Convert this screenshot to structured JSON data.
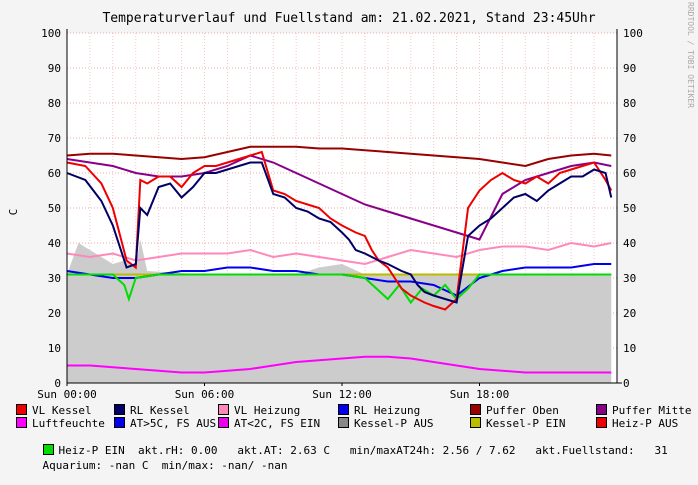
{
  "chart_data": {
    "type": "line",
    "title": "Temperaturverlauf und Fuellstand am: 21.02.2021, Stand 23:45Uhr",
    "ylabel": "C",
    "ylim": [
      0,
      100
    ],
    "yticks": [
      0,
      10,
      20,
      30,
      40,
      50,
      60,
      70,
      80,
      90,
      100
    ],
    "x_tick_labels": [
      "Sun 00:00",
      "Sun 06:00",
      "Sun 12:00",
      "Sun 18:00"
    ],
    "watermark": "RRDTOOL / TOBI OETIKER",
    "series": [
      {
        "name": "VL Kessel",
        "color": "#ee0000",
        "x": [
          0,
          0.8,
          1.5,
          2,
          2.6,
          3,
          3.2,
          3.5,
          4,
          4.5,
          5,
          5.5,
          6,
          6.5,
          7,
          7.5,
          8,
          8.5,
          9,
          9.5,
          10,
          10.5,
          11,
          11.5,
          12,
          12.3,
          12.6,
          13,
          13.3,
          13.6,
          14,
          14.3,
          14.6,
          15,
          15.3,
          15.6,
          16,
          16.5,
          17,
          17.5,
          18,
          18.5,
          19,
          19.5,
          20,
          20.5,
          21,
          21.5,
          22,
          22.5,
          23,
          23.5,
          23.75
        ],
        "y": [
          63,
          62,
          57,
          50,
          35,
          33,
          58,
          57,
          59,
          59,
          56,
          60,
          62,
          62,
          63,
          64,
          65,
          66,
          55,
          54,
          52,
          51,
          50,
          47,
          45,
          44,
          43,
          42,
          38,
          35,
          33,
          30,
          27,
          25,
          24,
          23,
          22,
          21,
          24,
          50,
          55,
          58,
          60,
          58,
          57,
          59,
          57,
          60,
          61,
          62,
          63,
          58,
          55
        ]
      },
      {
        "name": "RL Kessel",
        "color": "#000066",
        "x": [
          0,
          0.8,
          1.5,
          2,
          2.6,
          3,
          3.2,
          3.5,
          4,
          4.5,
          5,
          5.5,
          6,
          6.5,
          7,
          7.5,
          8,
          8.5,
          9,
          9.5,
          10,
          10.5,
          11,
          11.5,
          12,
          12.3,
          12.6,
          13,
          13.3,
          13.6,
          14,
          14.3,
          14.6,
          15,
          15.3,
          15.6,
          16,
          16.5,
          17,
          17.5,
          18,
          18.5,
          19,
          19.5,
          20,
          20.5,
          21,
          21.5,
          22,
          22.5,
          23,
          23.5,
          23.75
        ],
        "y": [
          60,
          58,
          52,
          45,
          33,
          34,
          50,
          48,
          56,
          57,
          53,
          56,
          60,
          60,
          61,
          62,
          63,
          63,
          54,
          53,
          50,
          49,
          47,
          46,
          43,
          41,
          38,
          37,
          36,
          35,
          34,
          33,
          32,
          31,
          28,
          26,
          25,
          24,
          23,
          42,
          45,
          47,
          50,
          53,
          54,
          52,
          55,
          57,
          59,
          59,
          61,
          60,
          53
        ]
      },
      {
        "name": "VL Heizung",
        "color": "#ff88bb",
        "x": [
          0,
          1,
          2,
          3,
          4,
          5,
          6,
          7,
          8,
          9,
          10,
          11,
          12,
          13,
          14,
          15,
          16,
          17,
          18,
          19,
          20,
          21,
          22,
          23,
          23.75
        ],
        "y": [
          37,
          36,
          37,
          35,
          36,
          37,
          37,
          37,
          38,
          36,
          37,
          36,
          35,
          34,
          36,
          38,
          37,
          36,
          38,
          39,
          39,
          38,
          40,
          39,
          40
        ]
      },
      {
        "name": "RL Heizung",
        "color": "#0000ee",
        "x": [
          0,
          1,
          2,
          3,
          4,
          5,
          6,
          7,
          8,
          9,
          10,
          11,
          12,
          13,
          14,
          15,
          16,
          17,
          18,
          19,
          20,
          21,
          22,
          23,
          23.75
        ],
        "y": [
          32,
          31,
          30,
          30,
          31,
          32,
          32,
          33,
          33,
          32,
          32,
          31,
          31,
          30,
          29,
          29,
          28,
          25,
          30,
          32,
          33,
          33,
          33,
          34,
          34
        ]
      },
      {
        "name": "Puffer Oben",
        "color": "#990000",
        "x": [
          0,
          1,
          2,
          3,
          4,
          5,
          6,
          7,
          8,
          9,
          10,
          11,
          12,
          13,
          14,
          15,
          16,
          17,
          18,
          19,
          20,
          21,
          22,
          23,
          23.75
        ],
        "y": [
          65,
          65.5,
          65.5,
          65,
          64.5,
          64,
          64.5,
          66,
          67.5,
          67.5,
          67.5,
          67,
          67,
          66.5,
          66,
          65.5,
          65,
          64.5,
          64,
          63,
          62,
          64,
          65,
          65.5,
          65
        ]
      },
      {
        "name": "Puffer Mitte",
        "color": "#880088",
        "x": [
          0,
          1,
          2,
          3,
          4,
          5,
          6,
          7,
          8,
          9,
          10,
          11,
          12,
          13,
          14,
          15,
          16,
          17,
          18,
          19,
          20,
          21,
          22,
          23,
          23.75
        ],
        "y": [
          64,
          63,
          62,
          60,
          59,
          59,
          60,
          62,
          65,
          63,
          60,
          57,
          54,
          51,
          49,
          47,
          45,
          43,
          41,
          54,
          58,
          60,
          62,
          63,
          62
        ]
      },
      {
        "name": "Luftfeuchte",
        "color": "#ff00ff",
        "x": [
          0,
          1,
          2,
          3,
          4,
          5,
          6,
          7,
          8,
          9,
          10,
          11,
          12,
          13,
          14,
          15,
          16,
          17,
          18,
          19,
          20,
          21,
          22,
          23,
          23.75
        ],
        "y": [
          5,
          5,
          4.5,
          4,
          3.5,
          3,
          3,
          3.5,
          4,
          5,
          6,
          6.5,
          7,
          7.5,
          7.5,
          7,
          6,
          5,
          4,
          3.5,
          3,
          3,
          3,
          3,
          3
        ]
      },
      {
        "name": "AT>5C, FS AUS",
        "color": "#0000ee",
        "x": [],
        "y": []
      },
      {
        "name": "AT<2C, FS EIN",
        "color": "#ee00ee",
        "x": [],
        "y": []
      },
      {
        "name": "Kessel-P AUS",
        "color": "#888888",
        "x": [],
        "y": []
      },
      {
        "name": "Kessel-P EIN",
        "color": "#bbbb00",
        "x": [
          0,
          2,
          4,
          6,
          8,
          10,
          12,
          14,
          16,
          18,
          20,
          22,
          23.75
        ],
        "y": [
          31,
          31,
          31,
          31,
          31,
          31,
          31,
          31,
          31,
          31,
          31,
          31,
          31
        ]
      },
      {
        "name": "Heiz-P AUS",
        "color": "#ee0000",
        "x": [],
        "y": []
      },
      {
        "name": "Heiz-P EIN",
        "color": "#00dd00",
        "x": [
          0,
          1,
          2,
          2.5,
          2.7,
          3,
          4,
          6,
          8,
          10,
          12,
          13,
          13.5,
          14,
          14.5,
          15,
          15.5,
          16,
          16.5,
          17,
          17.5,
          18,
          20,
          22,
          23.75
        ],
        "y": [
          31,
          31,
          31,
          28,
          24,
          30,
          31,
          31,
          31,
          31,
          31,
          30,
          27,
          24,
          28,
          23,
          27,
          25,
          28,
          24,
          27,
          31,
          31,
          31,
          31
        ]
      },
      {
        "name": "Fuellstand",
        "color": "#cccccc",
        "x": [
          0,
          0.5,
          1,
          1.5,
          2,
          2.5,
          3,
          3.2,
          3.5,
          6,
          8,
          10,
          11,
          12,
          13,
          14,
          15,
          16,
          17,
          18,
          19,
          20,
          21,
          22,
          23,
          23.75
        ],
        "y": [
          31,
          40,
          38,
          36,
          34,
          35,
          33,
          41,
          32,
          31,
          31,
          31,
          33,
          34,
          31,
          31,
          31,
          31,
          31,
          31,
          31,
          31,
          31,
          31,
          31,
          31
        ]
      }
    ]
  },
  "legend_rows": [
    [
      {
        "label": "VL Kessel",
        "color": "#ee0000"
      },
      {
        "label": "RL Kessel",
        "color": "#000066"
      },
      {
        "label": "VL Heizung",
        "color": "#ff88bb"
      },
      {
        "label": "RL Heizung",
        "color": "#0000ee"
      },
      {
        "label": "Puffer Oben",
        "color": "#990000"
      },
      {
        "label": "Puffer Mitte",
        "color": "#880088"
      }
    ],
    [
      {
        "label": "Luftfeuchte",
        "color": "#ff00ff"
      },
      {
        "label": "AT>5C, FS AUS",
        "color": "#0000ee"
      },
      {
        "label": "AT<2C, FS EIN",
        "color": "#ee00ee"
      },
      {
        "label": "Kessel-P AUS",
        "color": "#888888"
      },
      {
        "label": "Kessel-P EIN",
        "color": "#bbbb00"
      },
      {
        "label": "Heiz-P AUS",
        "color": "#ee0000"
      }
    ]
  ],
  "status": {
    "heizp_label": "Heiz-P EIN",
    "heizp_color": "#00dd00",
    "line3": "akt.rH: 0.00   akt.AT: 2.63 C   min/maxAT24h: 2.56 / 7.62   akt.Fuellstand:   31",
    "line4": "Aquarium: -nan C  min/max: -nan/ -nan"
  }
}
